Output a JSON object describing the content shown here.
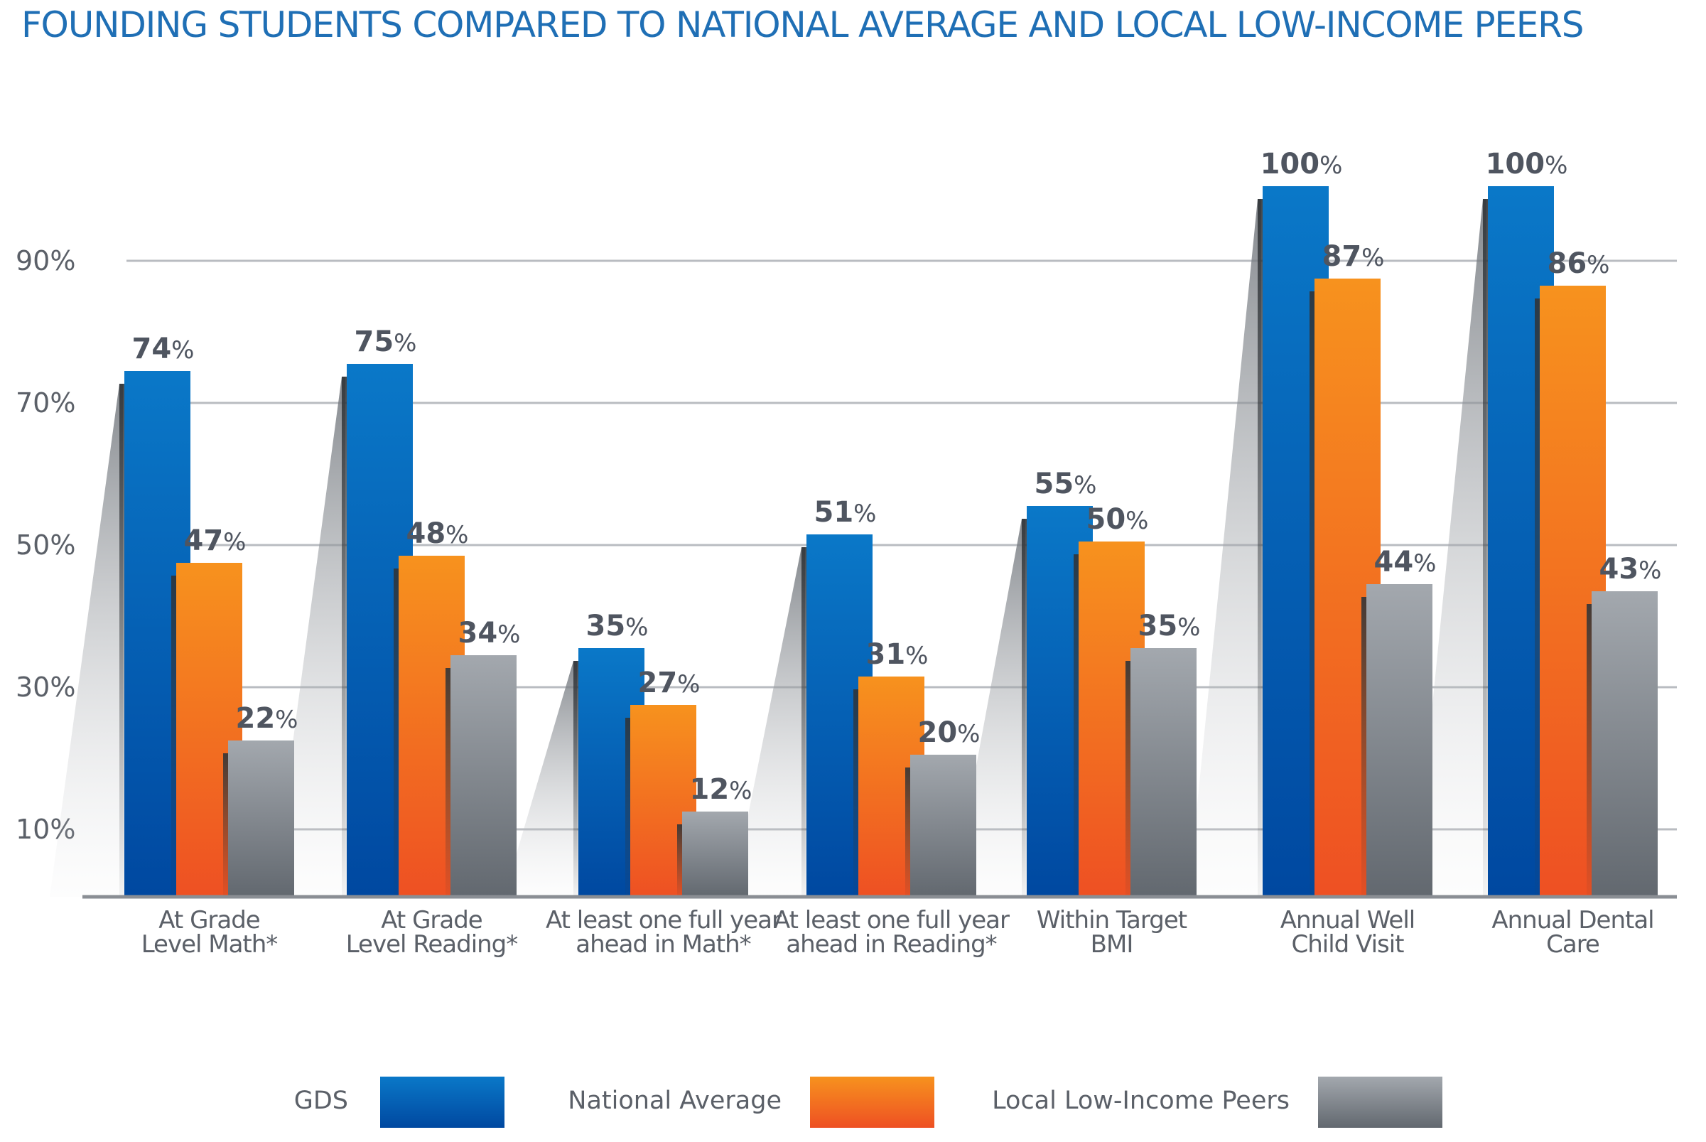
{
  "chart_data": {
    "type": "bar",
    "title": "FOUNDING STUDENTS COMPARED TO NATIONAL AVERAGE AND LOCAL LOW-INCOME PEERS",
    "categories": [
      [
        "At Grade",
        "Level Math*"
      ],
      [
        "At Grade",
        "Level Reading*"
      ],
      [
        "At least one full year",
        "ahead in Math*"
      ],
      [
        "At least one full year",
        "ahead in Reading*"
      ],
      [
        "Within Target",
        "BMI"
      ],
      [
        "Annual Well",
        "Child Visit"
      ],
      [
        "Annual Dental",
        "Care"
      ]
    ],
    "series": [
      {
        "name": "GDS",
        "values": [
          74,
          75,
          35,
          51,
          55,
          100,
          100
        ],
        "labels": [
          "74",
          "75",
          "35",
          "51",
          "55",
          "100",
          "100"
        ]
      },
      {
        "name": "National Average",
        "values": [
          47,
          48,
          27,
          31,
          50,
          87,
          86
        ],
        "labels": [
          "47",
          "48",
          "27",
          "31",
          "50",
          "87",
          "86"
        ]
      },
      {
        "name": "Local Low-Income Peers",
        "values": [
          22,
          34,
          12,
          20,
          35,
          44,
          43
        ],
        "labels": [
          "22",
          "34",
          "12",
          "20",
          "35",
          "44",
          "43"
        ]
      }
    ],
    "value_suffix": "%",
    "yticks": [
      "10%",
      "30%",
      "50%",
      "70%",
      "90%"
    ],
    "ytick_values": [
      10,
      30,
      50,
      70,
      90
    ],
    "ylim": [
      0,
      100
    ],
    "grid": true,
    "legend_position": "bottom",
    "colors": {
      "GDS": [
        "#0a78c8",
        "#0048a0"
      ],
      "National Average": [
        "#f7921e",
        "#ee5023"
      ],
      "Local Low-Income Peers": [
        "#a3a8ae",
        "#62686f"
      ],
      "grid": "#b9bcc1",
      "axis": "#8a8e94"
    }
  }
}
